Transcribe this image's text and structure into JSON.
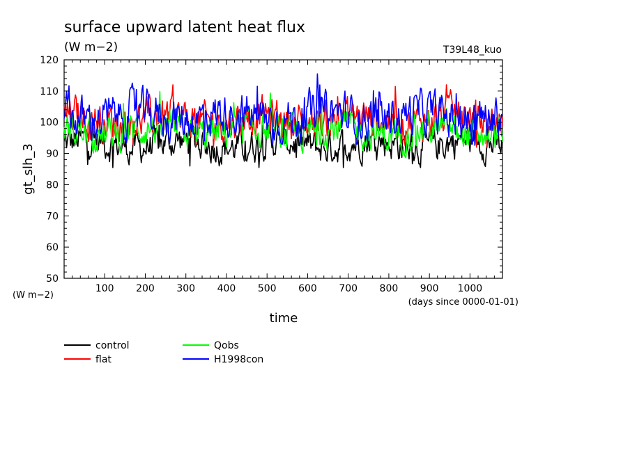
{
  "chart_data": {
    "type": "line",
    "title": "surface upward latent heat flux",
    "subtitle": "(W m−2)",
    "run_label": "T39L48_kuo",
    "xlabel": "time",
    "x_units": "(days since 0000-01-01)",
    "ylabel": "gt_slh_3",
    "y_units": "(W m−2)",
    "xlim": [
      0,
      1080
    ],
    "ylim": [
      50,
      120
    ],
    "x_ticks": [
      "100",
      "200",
      "300",
      "400",
      "500",
      "600",
      "700",
      "800",
      "900",
      "1000"
    ],
    "y_ticks": [
      "50",
      "60",
      "70",
      "80",
      "90",
      "100",
      "110",
      "120"
    ],
    "grid": false,
    "legend_position": "bottom-left",
    "series": [
      {
        "name": "control",
        "color": "#000000",
        "mean": 93,
        "amp": 3.5,
        "min": 85.5,
        "max": 99
      },
      {
        "name": "flat",
        "color": "#ff0000",
        "mean": 101,
        "amp": 4,
        "min": 92,
        "max": 112
      },
      {
        "name": "Qobs",
        "color": "#00ff00",
        "mean": 97,
        "amp": 3.5,
        "min": 88,
        "max": 110.5
      },
      {
        "name": "H1998con",
        "color": "#0000ff",
        "mean": 102,
        "amp": 4.5,
        "min": 93,
        "max": 115.5
      }
    ]
  }
}
